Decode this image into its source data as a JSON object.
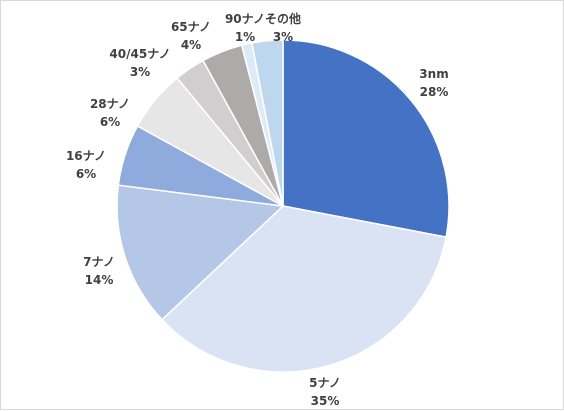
{
  "chart_data": {
    "type": "pie",
    "title": "",
    "start_angle_deg": 0,
    "direction": "clockwise",
    "slices": [
      {
        "label": "3nm",
        "value": 28,
        "pct_label": "28%",
        "color": "#4472C4"
      },
      {
        "label": "5ナノ",
        "value": 35,
        "pct_label": "35%",
        "color": "#DAE3F3"
      },
      {
        "label": "7ナノ",
        "value": 14,
        "pct_label": "14%",
        "color": "#B4C7E7"
      },
      {
        "label": "16ナノ",
        "value": 6,
        "pct_label": "6%",
        "color": "#8FAADC"
      },
      {
        "label": "28ナノ",
        "value": 6,
        "pct_label": "6%",
        "color": "#E7E6E6"
      },
      {
        "label": "40/45ナノ",
        "value": 3,
        "pct_label": "3%",
        "color": "#D0CECE"
      },
      {
        "label": "65ナノ",
        "value": 4,
        "pct_label": "4%",
        "color": "#AEAAAA"
      },
      {
        "label": "90ナノ",
        "value": 1,
        "pct_label": "1%",
        "color": "#DEEBF7"
      },
      {
        "label": "その他",
        "value": 3,
        "pct_label": "3%",
        "color": "#BDD7EE"
      }
    ],
    "slice_border_color": "#ffffff",
    "label_color": "#404040"
  }
}
